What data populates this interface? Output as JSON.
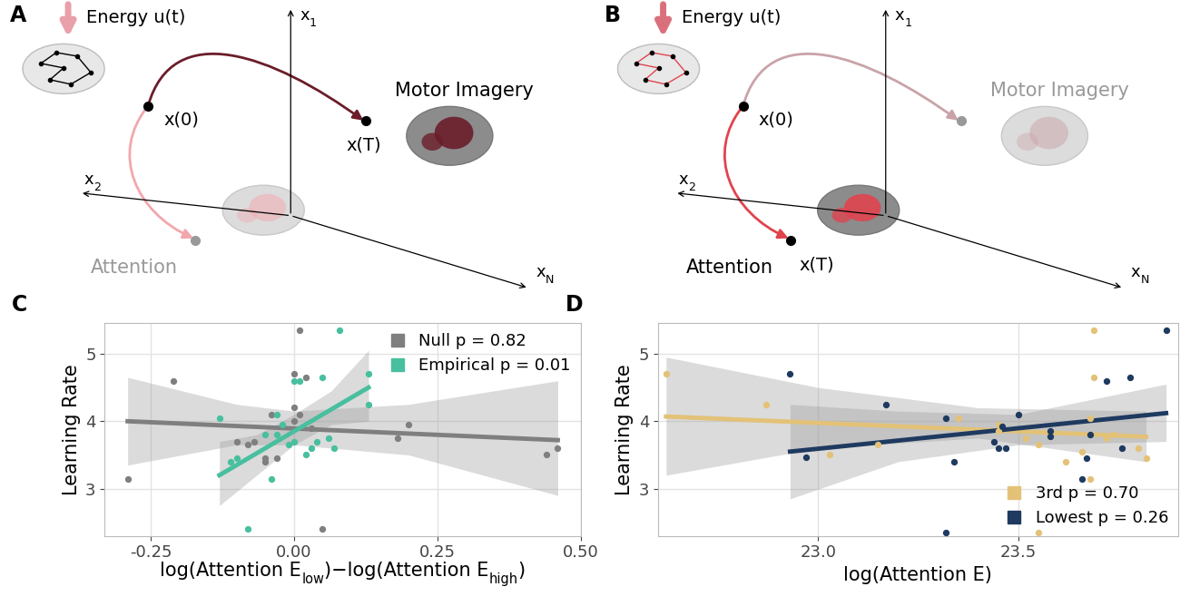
{
  "diagrams": [
    {
      "panel": "A",
      "energy_label": "Energy u(t)",
      "start_label": "x(0)",
      "end_label": "x(T)",
      "states": [
        {
          "name": "Motor Imagery",
          "active": true
        },
        {
          "name": "Attention",
          "active": false
        }
      ],
      "axes": [
        [
          {
            "text": "x"
          },
          {
            "sub": "1"
          }
        ],
        [
          {
            "text": "x"
          },
          {
            "sub": "2"
          }
        ],
        [
          {
            "text": "x"
          },
          {
            "sub": "N"
          }
        ]
      ]
    },
    {
      "panel": "B",
      "energy_label": "Energy u(t)",
      "start_label": "x(0)",
      "end_label": "x(T)",
      "states": [
        {
          "name": "Motor Imagery",
          "active": false
        },
        {
          "name": "Attention",
          "active": true
        }
      ],
      "axes": [
        [
          {
            "text": "x"
          },
          {
            "sub": "1"
          }
        ],
        [
          {
            "text": "x"
          },
          {
            "sub": "2"
          }
        ],
        [
          {
            "text": "x"
          },
          {
            "sub": "N"
          }
        ]
      ]
    }
  ],
  "chart_data": [
    {
      "panel": "C",
      "type": "scatter",
      "ylabel": "Learning Rate",
      "xlabel": [
        {
          "text": "log(Attention E"
        },
        {
          "sub": "low"
        },
        {
          "text": ")−log(Attention E"
        },
        {
          "sub": "high"
        },
        {
          "text": ")"
        }
      ],
      "xlim": [
        -0.33,
        0.5
      ],
      "ylim": [
        2.3,
        5.45
      ],
      "xticks": [
        -0.25,
        {
          "value": 0,
          "label": "0.00"
        },
        0.25,
        {
          "value": 0.5,
          "label": "0.50"
        }
      ],
      "yticks": [
        3,
        4,
        5
      ],
      "grid": true,
      "legend": "upper right",
      "series": [
        {
          "name": "Null p = 0.82",
          "color": "#7f7f7f",
          "x": [
            -0.29,
            -0.21,
            0.01,
            0.0,
            0.0,
            0.02,
            -0.04,
            0.01,
            0.03,
            0.0,
            -0.08,
            -0.07,
            -0.05,
            -0.05,
            -0.03,
            0.05,
            0.18,
            0.2,
            0.44,
            0.46,
            -0.1
          ],
          "values": [
            3.15,
            4.6,
            5.35,
            4.7,
            4.2,
            4.65,
            4.1,
            4.1,
            3.9,
            4.0,
            3.65,
            3.7,
            3.45,
            3.4,
            3.45,
            2.4,
            3.75,
            3.95,
            3.5,
            3.6,
            3.7
          ],
          "fit": {
            "x": [
              -0.29,
              0.46
            ],
            "values": [
              4.0,
              3.72
            ]
          },
          "band": {
            "x": [
              -0.29,
              -0.1,
              0.0,
              0.2,
              0.46
            ],
            "lower": [
              3.35,
              3.65,
              3.65,
              3.5,
              2.9
            ],
            "upper": [
              4.65,
              4.25,
              4.15,
              4.25,
              4.6
            ]
          }
        },
        {
          "name": "Empirical p = 0.01",
          "color": "#48bf9e",
          "x": [
            0.08,
            -0.13,
            0.13,
            0.13,
            0.0,
            0.05,
            0.01,
            -0.03,
            -0.02,
            -0.03,
            0.0,
            0.02,
            0.03,
            0.06,
            0.07,
            -0.04,
            -0.08,
            -0.1,
            -0.11,
            -0.05,
            0.04,
            -0.01
          ],
          "values": [
            5.35,
            4.05,
            4.7,
            4.25,
            4.6,
            4.65,
            4.6,
            4.1,
            3.95,
            3.8,
            3.7,
            3.5,
            3.6,
            3.75,
            3.6,
            3.15,
            2.4,
            3.45,
            3.4,
            3.8,
            3.7,
            3.65
          ],
          "fit": {
            "x": [
              -0.13,
              0.13
            ],
            "values": [
              3.2,
              4.5
            ]
          },
          "band": {
            "x": [
              -0.13,
              -0.065,
              0.0,
              0.065,
              0.13
            ],
            "lower": [
              2.75,
              3.2,
              3.65,
              3.95,
              4.0
            ],
            "upper": [
              3.7,
              3.8,
              4.1,
              4.45,
              5.05
            ]
          }
        }
      ]
    },
    {
      "panel": "D",
      "type": "scatter",
      "ylabel": "Learning Rate",
      "xlabel": "log(Attention E)",
      "xlim": [
        22.6,
        23.9
      ],
      "ylim": [
        2.3,
        5.45
      ],
      "xticks": [
        {
          "value": 23.0,
          "label": "23.0"
        },
        {
          "value": 23.5,
          "label": "23.5"
        }
      ],
      "yticks": [
        3,
        4,
        5
      ],
      "grid": true,
      "legend": "lower right",
      "series": [
        {
          "name": "3rd p = 0.70",
          "color": "#e3c278",
          "x": [
            22.62,
            22.87,
            23.15,
            23.35,
            23.45,
            23.52,
            23.55,
            23.62,
            23.66,
            23.69,
            23.69,
            23.68,
            23.68,
            23.72,
            23.74,
            23.8,
            23.82,
            23.55,
            23.45,
            23.03
          ],
          "values": [
            4.7,
            4.25,
            3.65,
            4.05,
            3.95,
            3.75,
            3.65,
            3.4,
            3.55,
            5.35,
            4.65,
            3.15,
            4.05,
            3.75,
            3.8,
            3.6,
            3.45,
            2.35,
            3.85,
            3.5
          ],
          "fit": {
            "x": [
              22.62,
              23.82
            ],
            "values": [
              4.07,
              3.77
            ]
          },
          "band": {
            "x": [
              22.62,
              23.0,
              23.4,
              23.82
            ],
            "lower": [
              3.2,
              3.6,
              3.75,
              3.4
            ],
            "upper": [
              4.95,
              4.5,
              4.2,
              4.15
            ]
          }
        },
        {
          "name": "Lowest p = 0.26",
          "color": "#1f3a60",
          "x": [
            22.93,
            22.97,
            23.17,
            23.32,
            23.34,
            23.44,
            23.46,
            23.47,
            23.5,
            23.58,
            23.58,
            23.66,
            23.67,
            23.68,
            23.72,
            23.76,
            23.78,
            23.87,
            23.32,
            23.45
          ],
          "values": [
            4.7,
            3.47,
            4.25,
            4.05,
            3.4,
            3.7,
            3.92,
            3.6,
            4.1,
            3.78,
            3.85,
            3.15,
            3.45,
            3.8,
            4.6,
            3.6,
            4.65,
            5.35,
            2.35,
            3.6
          ],
          "fit": {
            "x": [
              22.93,
              23.87
            ],
            "values": [
              3.55,
              4.12
            ]
          },
          "band": {
            "x": [
              22.93,
              23.2,
              23.5,
              23.87
            ],
            "lower": [
              2.85,
              3.4,
              3.65,
              3.7
            ],
            "upper": [
              4.25,
              4.15,
              4.1,
              4.55
            ]
          }
        }
      ]
    }
  ]
}
